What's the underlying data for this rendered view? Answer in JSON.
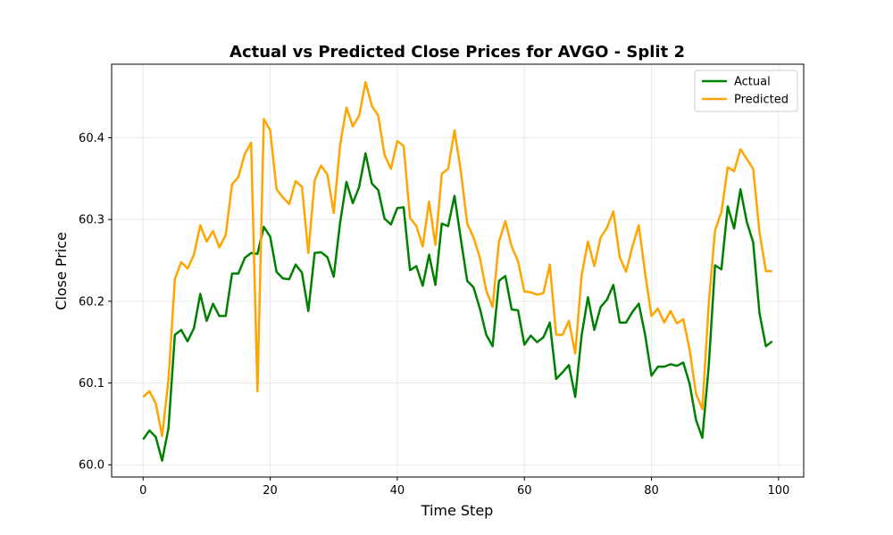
{
  "chart_data": {
    "type": "line",
    "title": "Actual vs Predicted Close Prices for AVGO - Split 2",
    "xlabel": "Time Step",
    "ylabel": "Close Price",
    "xlim": [
      -4.95,
      103.95
    ],
    "ylim": [
      59.985,
      60.49
    ],
    "xticks": [
      0,
      20,
      40,
      60,
      80,
      100
    ],
    "yticks": [
      60.0,
      60.1,
      60.2,
      60.3,
      60.4
    ],
    "xtick_labels": [
      "0",
      "20",
      "40",
      "60",
      "80",
      "100"
    ],
    "ytick_labels": [
      "60.0",
      "60.1",
      "60.2",
      "60.3",
      "60.4"
    ],
    "grid": true,
    "legend_position": "top-right",
    "series": [
      {
        "name": "Actual",
        "color": "#008000",
        "values": [
          60.031,
          60.042,
          60.034,
          60.005,
          60.045,
          60.159,
          60.165,
          60.151,
          60.167,
          60.209,
          60.176,
          60.197,
          60.182,
          60.182,
          60.234,
          60.234,
          60.253,
          60.259,
          60.258,
          60.291,
          60.279,
          60.236,
          60.228,
          60.227,
          60.245,
          60.235,
          60.188,
          60.259,
          60.26,
          60.254,
          60.23,
          60.296,
          60.346,
          60.32,
          60.34,
          60.381,
          60.344,
          60.336,
          60.301,
          60.294,
          60.314,
          60.315,
          60.238,
          60.243,
          60.219,
          60.257,
          60.22,
          60.295,
          60.292,
          60.329,
          60.276,
          60.225,
          60.217,
          60.191,
          60.159,
          60.145,
          60.225,
          60.231,
          60.19,
          60.189,
          60.147,
          60.158,
          60.15,
          60.156,
          60.174,
          60.105,
          60.113,
          60.122,
          60.083,
          60.158,
          60.205,
          60.165,
          60.193,
          60.202,
          60.22,
          60.174,
          60.174,
          60.187,
          60.197,
          60.159,
          60.109,
          60.12,
          60.12,
          60.123,
          60.121,
          60.125,
          60.099,
          60.055,
          60.033,
          60.12,
          60.244,
          60.239,
          60.316,
          60.289,
          60.337,
          60.297,
          60.272,
          60.185,
          60.145,
          60.151
        ]
      },
      {
        "name": "Predicted",
        "color": "#FFA500",
        "values": [
          60.083,
          60.09,
          60.075,
          60.035,
          60.104,
          60.227,
          60.248,
          60.24,
          60.257,
          60.293,
          60.273,
          60.286,
          60.266,
          60.281,
          60.343,
          60.352,
          60.38,
          60.394,
          60.09,
          60.423,
          60.409,
          60.337,
          60.327,
          60.319,
          60.347,
          60.34,
          60.259,
          60.348,
          60.366,
          60.355,
          60.308,
          60.391,
          60.437,
          60.414,
          60.427,
          60.468,
          60.439,
          60.427,
          60.379,
          60.362,
          60.396,
          60.39,
          60.302,
          60.292,
          60.267,
          60.322,
          60.269,
          60.356,
          60.362,
          60.409,
          60.359,
          60.295,
          60.278,
          60.253,
          60.213,
          60.193,
          60.273,
          60.298,
          60.267,
          60.249,
          60.212,
          60.211,
          60.208,
          60.21,
          60.245,
          60.159,
          60.159,
          60.176,
          60.136,
          60.231,
          60.273,
          60.243,
          60.278,
          60.29,
          60.31,
          60.254,
          60.236,
          60.267,
          60.293,
          60.234,
          60.182,
          60.191,
          60.174,
          60.188,
          60.173,
          60.178,
          60.141,
          60.087,
          60.068,
          60.196,
          60.287,
          60.309,
          60.364,
          60.359,
          60.386,
          60.374,
          60.362,
          60.284,
          60.237,
          60.237
        ]
      }
    ]
  }
}
